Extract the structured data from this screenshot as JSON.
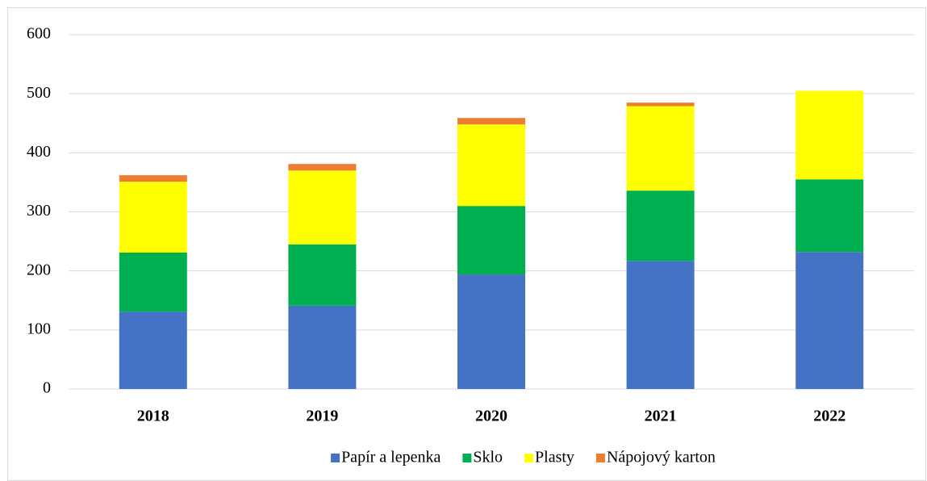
{
  "chart_data": {
    "type": "stacked_bar",
    "categories": [
      "2018",
      "2019",
      "2020",
      "2021",
      "2022"
    ],
    "series": [
      {
        "name": "Papír a lepenka",
        "color": "#4472c4",
        "values": [
          131,
          141,
          194,
          217,
          232
        ]
      },
      {
        "name": "Sklo",
        "color": "#00b050",
        "values": [
          100,
          104,
          116,
          119,
          123
        ]
      },
      {
        "name": "Plasty",
        "color": "#ffff00",
        "values": [
          120,
          125,
          138,
          143,
          150
        ]
      },
      {
        "name": "Nápojový karton",
        "color": "#ed7d31",
        "values": [
          11,
          11,
          11,
          6,
          0
        ]
      }
    ],
    "ylim": [
      0,
      600
    ],
    "yticks": [
      0,
      100,
      200,
      300,
      400,
      500,
      600
    ],
    "grid": true,
    "legend": "bottom"
  }
}
